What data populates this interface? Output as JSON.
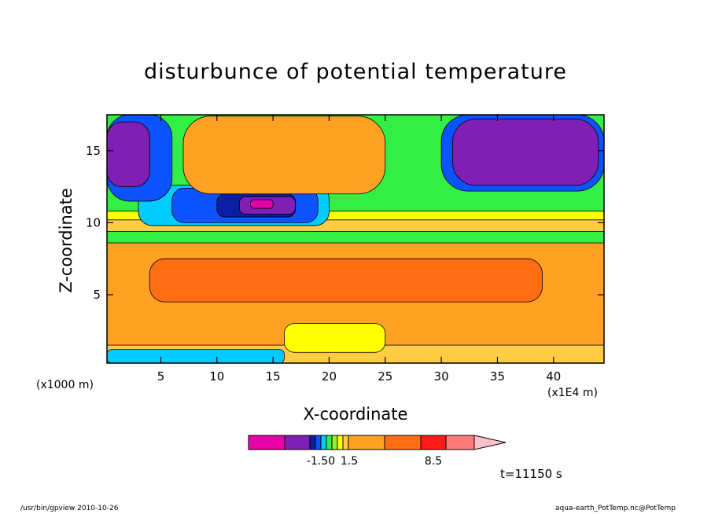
{
  "chart_data": {
    "type": "heatmap",
    "title": "disturbunce of potential temperature",
    "xlabel": "X-coordinate",
    "ylabel": "Z-coordinate",
    "x_unit": "(x1E4 m)",
    "y_unit": "(x1000 m)",
    "xlim": [
      0.2,
      44.5
    ],
    "ylim": [
      0.25,
      17.5
    ],
    "x_ticks": [
      5,
      10,
      15,
      20,
      25,
      30,
      35,
      40
    ],
    "y_ticks": [
      5,
      10,
      15
    ],
    "annotation": "t=11150 s",
    "colorbar": {
      "colors": [
        "#e600aa",
        "#7f1fb3",
        "#0b1fa6",
        "#0b53ff",
        "#00ccff",
        "#33ee44",
        "#99ee33",
        "#ffff00",
        "#ffcc44",
        "#ffa224",
        "#ff6e14",
        "#ff1a1a",
        "#ff7a7a",
        "#ffc0c8"
      ],
      "tick_labels": [
        "-1.50",
        "1.5",
        "8.5"
      ]
    },
    "fields": [
      {
        "x": [
          0.2,
          44.5
        ],
        "z": [
          0.25,
          17.5
        ],
        "color": "#ffa224"
      },
      {
        "x": [
          0.2,
          44.5
        ],
        "z": [
          8.6,
          17.5
        ],
        "color": "#33ee44"
      },
      {
        "x": [
          0.2,
          44.5
        ],
        "z": [
          9.4,
          10.2
        ],
        "color": "#ffcc44"
      },
      {
        "x": [
          0.2,
          44.5
        ],
        "z": [
          10.2,
          10.8
        ],
        "color": "#ffff00"
      },
      {
        "x": [
          3,
          20
        ],
        "z": [
          9.8,
          12.6
        ],
        "color": "#00ccff"
      },
      {
        "x": [
          6,
          19
        ],
        "z": [
          10,
          12.4
        ],
        "color": "#0b53ff"
      },
      {
        "x": [
          10,
          17
        ],
        "z": [
          10.4,
          12
        ],
        "color": "#0b1fa6"
      },
      {
        "x": [
          12,
          17
        ],
        "z": [
          10.6,
          11.8
        ],
        "color": "#7f1fb3"
      },
      {
        "x": [
          13,
          15
        ],
        "z": [
          11,
          11.6
        ],
        "color": "#e600aa"
      },
      {
        "x": [
          7,
          25
        ],
        "z": [
          12,
          17.4
        ],
        "color": "#ffa224"
      },
      {
        "x": [
          0.2,
          6
        ],
        "z": [
          11.5,
          17.5
        ],
        "color": "#0b53ff"
      },
      {
        "x": [
          0.2,
          4
        ],
        "z": [
          12.5,
          17
        ],
        "color": "#7f1fb3"
      },
      {
        "x": [
          30,
          44.5
        ],
        "z": [
          12.2,
          17.5
        ],
        "color": "#0b53ff"
      },
      {
        "x": [
          31,
          44
        ],
        "z": [
          12.6,
          17.2
        ],
        "color": "#7f1fb3"
      },
      {
        "x": [
          4,
          39
        ],
        "z": [
          4.5,
          7.5
        ],
        "color": "#ff6e14"
      },
      {
        "x": [
          0.2,
          44.5
        ],
        "z": [
          0.25,
          1.5
        ],
        "color": "#ffcc44"
      },
      {
        "x": [
          0.2,
          16
        ],
        "z": [
          0.25,
          1.2
        ],
        "color": "#00ccff"
      },
      {
        "x": [
          16,
          25
        ],
        "z": [
          1,
          3
        ],
        "color": "#ffff00"
      }
    ]
  },
  "footer": {
    "left": "/usr/bin/gpview   2010-10-26",
    "right": "aqua-earth_PotTemp.nc@PotTemp"
  }
}
